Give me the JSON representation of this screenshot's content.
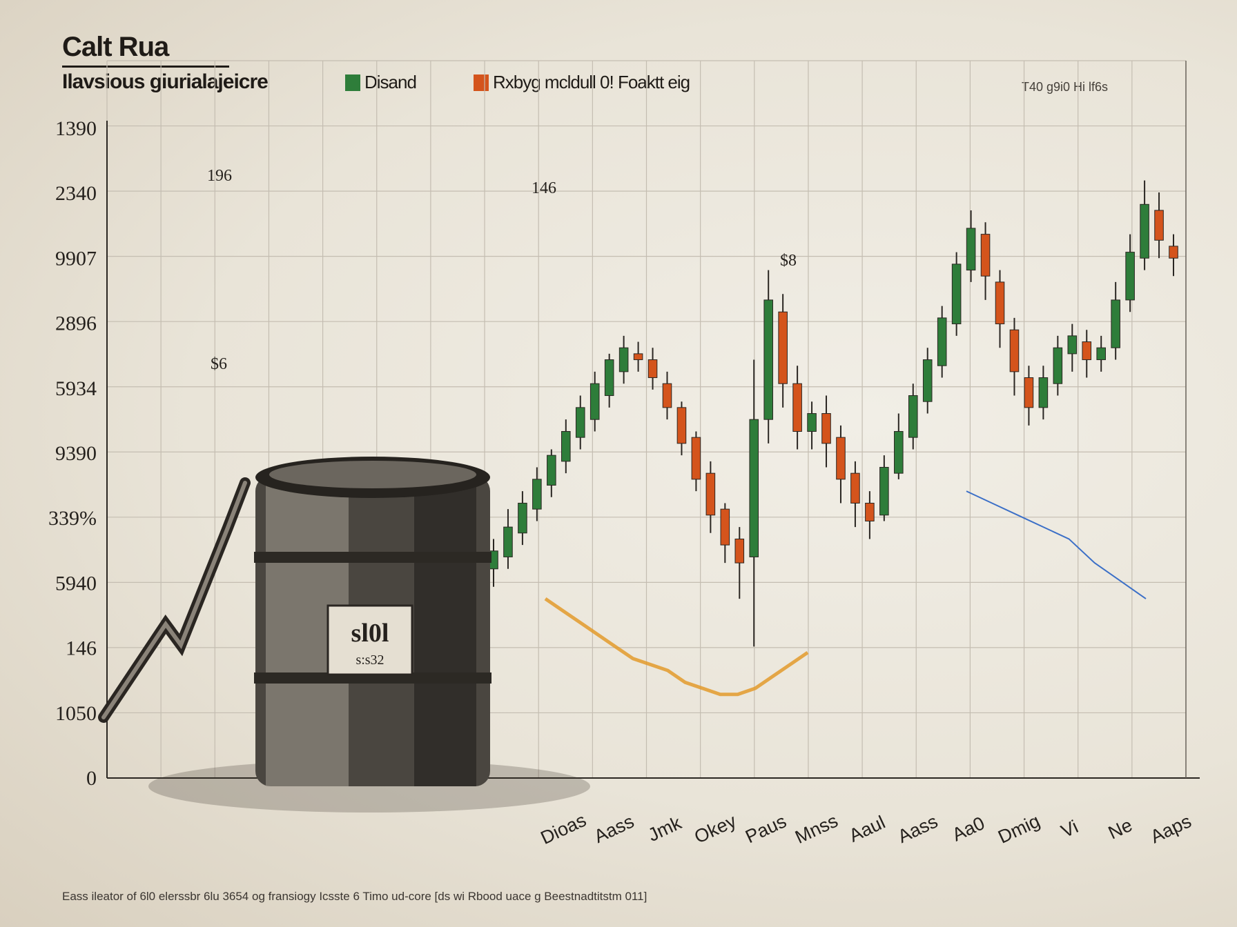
{
  "chart_data": {
    "type": "candlestick",
    "title": "Calt Rua",
    "subtitle": "Ilavsious giurialajeicre",
    "legend": [
      {
        "label": "Disand",
        "color": "#2e7d3a"
      },
      {
        "label": "Rxbyg mcldull 0! Foaktt eig",
        "color": "#d4541c"
      }
    ],
    "top_note": "T40 g9i0 Hi lf6s",
    "ytick_labels": [
      "1390",
      "2340",
      "9907",
      "2896",
      "5934",
      "9390",
      "339%",
      "5940",
      "146",
      "1050",
      "0"
    ],
    "xtick_labels": [
      "Dioas",
      "Aass",
      "Jmk",
      "Okey",
      "Paus",
      "Mnss",
      "Aaul",
      "Aass",
      "Aa0",
      "Dmig",
      "Vi",
      "Ne",
      "Aaps"
    ],
    "annotations": [
      "196",
      "146",
      "$6",
      "$8"
    ],
    "barrel_label_line1": "sl0l",
    "barrel_label_line2": "s:s32",
    "footnote": "Eass ileator of 6l0 elerssbr 6lu 3654 og fransiogy Icsste  6  Timo ud-core [ds wi Rbood uace  g Beestnadtitstm 011]",
    "ohlc": [
      [
        35,
        38,
        32,
        40
      ],
      [
        37,
        42,
        35,
        45
      ],
      [
        41,
        46,
        39,
        48
      ],
      [
        45,
        50,
        43,
        52
      ],
      [
        49,
        54,
        47,
        55
      ],
      [
        53,
        58,
        51,
        60
      ],
      [
        57,
        62,
        55,
        64
      ],
      [
        60,
        66,
        58,
        68
      ],
      [
        64,
        70,
        62,
        71
      ],
      [
        68,
        72,
        66,
        74
      ],
      [
        71,
        70,
        68,
        73
      ],
      [
        70,
        67,
        65,
        72
      ],
      [
        66,
        62,
        60,
        68
      ],
      [
        62,
        56,
        54,
        63
      ],
      [
        57,
        50,
        48,
        58
      ],
      [
        51,
        44,
        41,
        53
      ],
      [
        45,
        39,
        36,
        46
      ],
      [
        40,
        36,
        30,
        42
      ],
      [
        37,
        60,
        22,
        70
      ],
      [
        60,
        80,
        56,
        85
      ],
      [
        78,
        66,
        62,
        81
      ],
      [
        66,
        58,
        55,
        69
      ],
      [
        58,
        61,
        55,
        63
      ],
      [
        61,
        56,
        52,
        64
      ],
      [
        57,
        50,
        46,
        59
      ],
      [
        51,
        46,
        42,
        53
      ],
      [
        46,
        43,
        40,
        48
      ],
      [
        44,
        52,
        43,
        54
      ],
      [
        51,
        58,
        50,
        61
      ],
      [
        57,
        64,
        55,
        66
      ],
      [
        63,
        70,
        61,
        72
      ],
      [
        69,
        77,
        67,
        79
      ],
      [
        76,
        86,
        74,
        88
      ],
      [
        85,
        92,
        83,
        95
      ],
      [
        91,
        84,
        80,
        93
      ],
      [
        83,
        76,
        72,
        85
      ],
      [
        75,
        68,
        64,
        77
      ],
      [
        67,
        62,
        59,
        69
      ],
      [
        62,
        67,
        60,
        69
      ],
      [
        66,
        72,
        64,
        74
      ],
      [
        71,
        74,
        68,
        76
      ],
      [
        73,
        70,
        67,
        75
      ],
      [
        70,
        72,
        68,
        74
      ],
      [
        72,
        80,
        70,
        83
      ],
      [
        80,
        88,
        78,
        91
      ],
      [
        87,
        96,
        85,
        100
      ],
      [
        95,
        90,
        87,
        98
      ],
      [
        89,
        87,
        84,
        91
      ]
    ],
    "overlay_orange_line": [
      30,
      28,
      26,
      24,
      22,
      20,
      19,
      18,
      16,
      15,
      14,
      14,
      15,
      17,
      19,
      21
    ],
    "overlay_blue_line": [
      48,
      46,
      44,
      42,
      40,
      36,
      33,
      30
    ],
    "ylim": [
      0,
      110
    ]
  }
}
